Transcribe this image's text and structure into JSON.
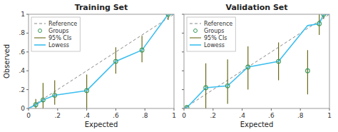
{
  "chart_data": [
    {
      "type": "scatter",
      "title": "Training Set",
      "x_label": "Expected",
      "y_label": "Observed",
      "xlim": [
        0,
        1.0
      ],
      "ylim": [
        0,
        1.0
      ],
      "xticks": [
        0,
        {
          "value": 0.2,
          "label": ".2"
        },
        {
          "value": 0.4,
          "label": ".4"
        },
        {
          "value": 0.6,
          "label": ".6"
        },
        {
          "value": 0.8,
          "label": ".8"
        },
        1
      ],
      "yticks": [
        0,
        {
          "value": 0.2,
          "label": ".2"
        },
        {
          "value": 0.4,
          "label": ".4"
        },
        {
          "value": 0.6,
          "label": ".6"
        },
        {
          "value": 0.8,
          "label": ".8"
        },
        1
      ],
      "grid": false,
      "legend": "upper left",
      "series": [
        {
          "name": "Reference",
          "type": "line",
          "line_style": "dashed",
          "color": "#888888",
          "x": [
            0,
            1
          ],
          "values": [
            0,
            1
          ]
        },
        {
          "name": "Groups",
          "type": "scatter",
          "marker": "circle",
          "color": "#3a9a5c",
          "x": [
            0.05,
            0.1,
            0.18,
            0.4,
            0.6,
            0.78,
            0.96
          ],
          "values": [
            0.04,
            0.09,
            0.14,
            0.19,
            0.5,
            0.62,
            1.0
          ]
        },
        {
          "name": "95% CIs",
          "type": "errorbar",
          "color": "#6b6b1a",
          "x": [
            0.05,
            0.1,
            0.18,
            0.4,
            0.6,
            0.78,
            0.96
          ],
          "low": [
            0.0,
            0.0,
            0.04,
            0.0,
            0.37,
            0.49,
            0.94
          ],
          "high": [
            0.1,
            0.27,
            0.3,
            0.36,
            0.65,
            0.77,
            1.0
          ]
        },
        {
          "name": "Lowess",
          "type": "line",
          "line_style": "solid",
          "color": "#3dbfef",
          "x": [
            0.0,
            0.05,
            0.1,
            0.18,
            0.4,
            0.6,
            0.78,
            0.96,
            1.0
          ],
          "values": [
            0.0,
            0.04,
            0.09,
            0.14,
            0.19,
            0.5,
            0.62,
            1.0,
            1.0
          ]
        }
      ]
    },
    {
      "type": "scatter",
      "title": "Validation Set",
      "x_label": "Expected",
      "xlim": [
        0,
        1.0
      ],
      "ylim": [
        0,
        1.0
      ],
      "xticks": [
        0,
        {
          "value": 0.2,
          "label": ".2"
        },
        {
          "value": 0.4,
          "label": ".4"
        },
        {
          "value": 0.6,
          "label": ".6"
        },
        {
          "value": 0.8,
          "label": ".8"
        },
        1
      ],
      "yticks": [
        0,
        {
          "value": 0.2,
          "label": ".2"
        },
        {
          "value": 0.4,
          "label": ".4"
        },
        {
          "value": 0.6,
          "label": ".6"
        },
        {
          "value": 0.8,
          "label": ".8"
        },
        1
      ],
      "tick_labels": "x",
      "grid": false,
      "legend": "upper left",
      "series": [
        {
          "name": "Reference",
          "type": "line",
          "line_style": "dashed",
          "color": "#888888",
          "x": [
            0,
            1
          ],
          "values": [
            0,
            1
          ]
        },
        {
          "name": "Groups",
          "type": "scatter",
          "marker": "circle",
          "color": "#3a9a5c",
          "x": [
            0.02,
            0.15,
            0.3,
            0.44,
            0.65,
            0.85,
            0.93,
            0.96
          ],
          "values": [
            0.01,
            0.22,
            0.24,
            0.44,
            0.5,
            0.4,
            0.9,
            1.0
          ]
        },
        {
          "name": "95% CIs",
          "type": "errorbar",
          "color": "#6b6b1a",
          "x": [
            0.02,
            0.15,
            0.3,
            0.44,
            0.65,
            0.85,
            0.93,
            0.96
          ],
          "low": [
            0.0,
            0.0,
            0.05,
            0.2,
            0.3,
            0.15,
            0.78,
            0.95
          ],
          "high": [
            0.03,
            0.48,
            0.52,
            0.66,
            0.7,
            0.62,
            1.0,
            1.0
          ]
        },
        {
          "name": "Lowess",
          "type": "line",
          "line_style": "solid",
          "color": "#3dbfef",
          "x": [
            0.0,
            0.02,
            0.15,
            0.3,
            0.44,
            0.65,
            0.85,
            0.93,
            0.96,
            1.0
          ],
          "values": [
            0.0,
            0.01,
            0.22,
            0.24,
            0.44,
            0.5,
            0.88,
            0.9,
            1.0,
            1.0
          ]
        }
      ]
    }
  ]
}
